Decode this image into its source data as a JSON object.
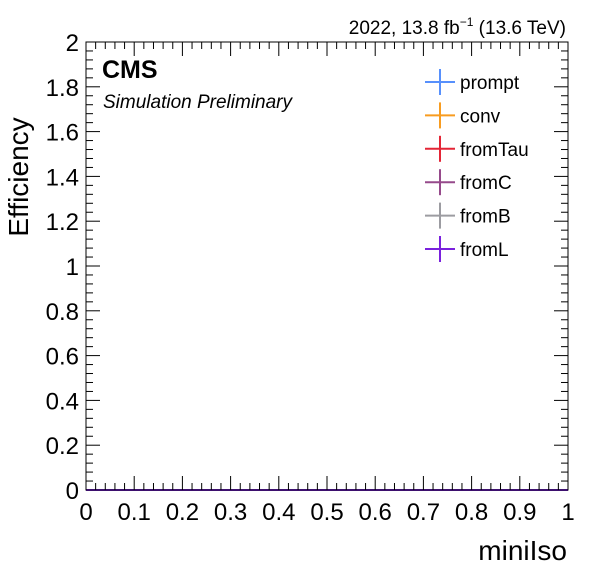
{
  "header": {
    "lumi_prefix": "2022, 13.8 fb",
    "lumi_exponent": "−1",
    "lumi_suffix": " (13.6 TeV)"
  },
  "branding": {
    "experiment": "CMS",
    "status": "Simulation Preliminary"
  },
  "chart_data": {
    "type": "line",
    "xlabel": "miniIso",
    "ylabel": "Efficiency",
    "xlim": [
      0,
      1
    ],
    "ylim": [
      0,
      2
    ],
    "x_ticks": [
      "0",
      "0.1",
      "0.2",
      "0.3",
      "0.4",
      "0.5",
      "0.6",
      "0.7",
      "0.8",
      "0.9",
      "1"
    ],
    "y_ticks": [
      "0",
      "0.2",
      "0.4",
      "0.6",
      "0.8",
      "1",
      "1.2",
      "1.4",
      "1.6",
      "1.8",
      "2"
    ],
    "grid": false,
    "legend_position": "top-right",
    "series": [
      {
        "name": "prompt",
        "color": "#5790fc",
        "x": [
          0,
          1
        ],
        "y": [
          0,
          0
        ]
      },
      {
        "name": "conv",
        "color": "#f89c20",
        "x": [
          0,
          1
        ],
        "y": [
          0,
          0
        ]
      },
      {
        "name": "fromTau",
        "color": "#e42536",
        "x": [
          0,
          1
        ],
        "y": [
          0,
          0
        ]
      },
      {
        "name": "fromC",
        "color": "#964a8b",
        "x": [
          0,
          1
        ],
        "y": [
          0,
          0
        ]
      },
      {
        "name": "fromB",
        "color": "#9c9ca1",
        "x": [
          0,
          1
        ],
        "y": [
          0,
          0
        ]
      },
      {
        "name": "fromL",
        "color": "#7a21dd",
        "x": [
          0,
          1
        ],
        "y": [
          0,
          0
        ]
      }
    ]
  }
}
